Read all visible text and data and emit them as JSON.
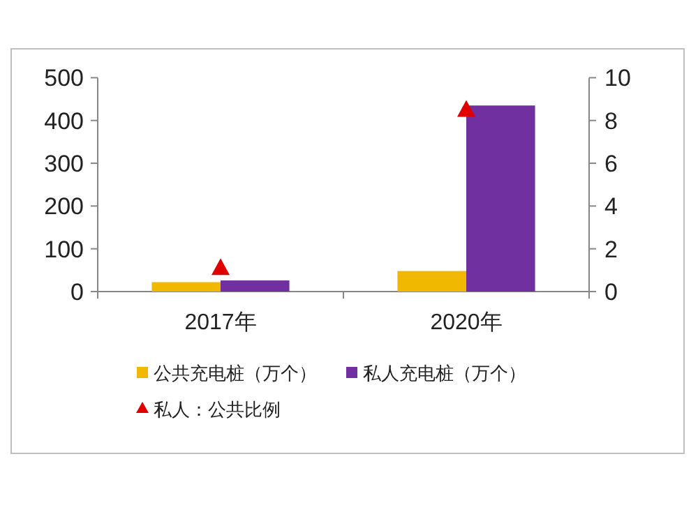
{
  "chart_data": {
    "type": "bar",
    "categories": [
      "2017年",
      "2020年"
    ],
    "series": [
      {
        "name": "公共充电桩（万个）",
        "color": "#f0b800",
        "values": [
          22,
          48
        ]
      },
      {
        "name": "私人充电桩（万个）",
        "color": "#7030a0",
        "values": [
          26,
          435
        ]
      },
      {
        "name": "私人：公共比例",
        "type": "scatter",
        "axis": "y2",
        "marker": "triangle",
        "color": "#e00000",
        "values": [
          1.1,
          8.5
        ]
      }
    ],
    "ylim": [
      0,
      500
    ],
    "yticks": [
      0,
      100,
      200,
      300,
      400,
      500
    ],
    "y2lim": [
      0,
      10
    ],
    "y2ticks": [
      0,
      2,
      4,
      6,
      8,
      10
    ],
    "legend": "bottom",
    "grid": false
  }
}
